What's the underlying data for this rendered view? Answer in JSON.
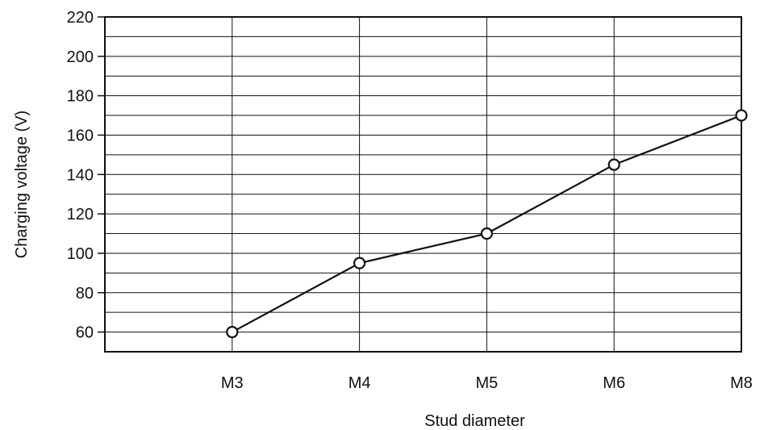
{
  "chart_data": {
    "type": "line",
    "title": "",
    "xlabel": "Stud diameter",
    "ylabel": "Charging voltage (V)",
    "categories": [
      "M3",
      "M4",
      "M5",
      "M6",
      "M8"
    ],
    "series": [
      {
        "values": [
          60,
          95,
          110,
          145,
          170
        ]
      }
    ],
    "ylim": [
      50,
      220
    ],
    "yticks": [
      60,
      80,
      100,
      120,
      140,
      160,
      180,
      200,
      220
    ],
    "ytick_labels": [
      "60",
      "80",
      "100",
      "120",
      "140",
      "160",
      "180",
      "200",
      "220"
    ],
    "grid": true,
    "marker": "open-circle",
    "line_color": "#111111",
    "marker_fill": "#ffffff"
  }
}
